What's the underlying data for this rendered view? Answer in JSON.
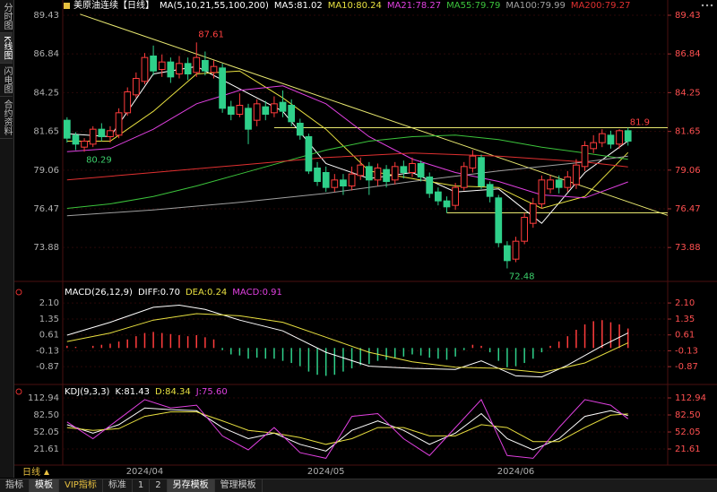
{
  "ui": {
    "sidebar": [
      "分时图",
      "K线图",
      "闪电图",
      "合约资料"
    ],
    "period": "日线",
    "toolbar": [
      "指标",
      "模板",
      "VIP指标",
      "标准",
      "1",
      "2",
      "另存模板",
      "管理模板"
    ]
  },
  "chart_data": [
    {
      "type": "candlestick",
      "title": "美原油连续【日线】",
      "indicator": "MA(5,10,21,55,100,200)",
      "categories": [
        null,
        null,
        null,
        null,
        null,
        null,
        null,
        null,
        null,
        "2024/04",
        null,
        null,
        null,
        null,
        null,
        null,
        null,
        null,
        null,
        null,
        null,
        null,
        null,
        null,
        null,
        null,
        null,
        null,
        null,
        null,
        "2024/05",
        null,
        null,
        null,
        null,
        null,
        null,
        null,
        null,
        null,
        null,
        null,
        null,
        null,
        null,
        null,
        null,
        null,
        null,
        null,
        null,
        null,
        "2024/06",
        null,
        null,
        null,
        null,
        null,
        null,
        null,
        null,
        null,
        null,
        null,
        null,
        null
      ],
      "open": [
        82.4,
        81.4,
        80.6,
        80.8,
        81.8,
        81.3,
        81.4,
        82.9,
        84.1,
        85.0,
        86.7,
        85.8,
        86.3,
        85.5,
        86.2,
        85.6,
        86.4,
        85.6,
        85.9,
        83.3,
        82.8,
        83.2,
        82.4,
        83.3,
        82.9,
        83.6,
        83.4,
        82.2,
        81.3,
        79.2,
        78.9,
        77.9,
        78.4,
        78.0,
        78.7,
        79.3,
        78.4,
        79.1,
        78.4,
        79.3,
        78.9,
        79.5,
        78.6,
        77.6,
        77.0,
        76.7,
        77.9,
        79.2,
        79.9,
        78.1,
        77.2,
        74.0,
        73.1,
        74.3,
        75.5,
        76.8,
        77.8,
        78.4,
        77.9,
        78.1,
        79.3,
        80.5,
        80.9,
        81.4,
        80.8,
        81.7
      ],
      "high": [
        82.6,
        81.6,
        81.2,
        82.0,
        82.2,
        82.0,
        83.2,
        84.6,
        85.6,
        86.9,
        87.4,
        86.8,
        86.6,
        86.7,
        86.6,
        87.61,
        87.0,
        86.4,
        86.2,
        83.7,
        84.2,
        83.5,
        83.8,
        83.7,
        84.0,
        84.4,
        83.8,
        82.5,
        81.5,
        79.6,
        79.3,
        78.8,
        78.8,
        79.3,
        79.9,
        79.6,
        79.5,
        79.4,
        79.6,
        79.7,
        79.9,
        79.7,
        78.9,
        77.9,
        77.3,
        78.2,
        79.6,
        80.4,
        80.1,
        78.3,
        77.4,
        74.3,
        74.6,
        76.2,
        77.2,
        78.7,
        78.7,
        78.7,
        79.0,
        79.8,
        81.0,
        81.4,
        81.8,
        81.7,
        81.8,
        81.9
      ],
      "low": [
        80.9,
        80.4,
        80.29,
        80.6,
        81.0,
        80.9,
        81.2,
        82.7,
        83.9,
        84.8,
        85.4,
        85.3,
        84.9,
        85.2,
        85.1,
        85.3,
        85.4,
        85.2,
        82.9,
        82.4,
        82.6,
        80.8,
        82.0,
        82.4,
        82.6,
        82.6,
        82.0,
        81.1,
        78.8,
        78.0,
        77.6,
        77.6,
        77.4,
        77.7,
        78.4,
        77.4,
        78.0,
        77.9,
        78.1,
        78.5,
        78.6,
        78.3,
        77.2,
        76.7,
        76.2,
        76.4,
        77.7,
        78.9,
        77.8,
        76.9,
        73.9,
        72.48,
        72.9,
        74.1,
        75.2,
        76.5,
        77.5,
        77.5,
        77.6,
        77.8,
        79.0,
        80.2,
        80.6,
        80.5,
        80.5,
        80.7
      ],
      "close": [
        81.2,
        80.8,
        81.0,
        81.8,
        81.3,
        81.7,
        82.9,
        84.3,
        85.2,
        86.6,
        85.7,
        86.3,
        85.3,
        86.2,
        85.5,
        86.6,
        85.7,
        86.0,
        83.2,
        82.8,
        83.4,
        81.8,
        83.5,
        82.8,
        83.5,
        83.0,
        82.3,
        81.4,
        79.0,
        78.3,
        77.9,
        78.4,
        78.0,
        78.8,
        79.4,
        78.4,
        79.2,
        78.3,
        79.3,
        78.9,
        79.5,
        78.6,
        77.5,
        77.0,
        76.6,
        77.9,
        79.3,
        80.0,
        78.0,
        77.3,
        74.2,
        73.0,
        74.3,
        75.9,
        76.8,
        78.4,
        78.4,
        77.9,
        78.6,
        79.4,
        80.7,
        80.9,
        81.5,
        80.8,
        81.7,
        81.0
      ],
      "up_color": "#ff3c3c",
      "down_color": "#2fd08a",
      "xlim": [
        -0.5,
        69.6
      ],
      "ylim": [
        71.85,
        89.97
      ],
      "yticks": [
        89.43,
        86.84,
        84.25,
        81.65,
        79.06,
        76.47,
        73.88
      ],
      "series": [
        {
          "name": "MA5:81.02",
          "color": "#ffffff",
          "x": [
            0,
            5,
            10,
            15,
            20,
            25,
            30,
            35,
            40,
            45,
            50,
            55,
            60,
            65
          ],
          "values": [
            81.5,
            81.3,
            85.5,
            86.0,
            84.5,
            83.0,
            79.5,
            78.5,
            78.9,
            77.6,
            77.8,
            75.5,
            78.9,
            81.02
          ]
        },
        {
          "name": "MA10:80.24",
          "color": "#e8e040",
          "x": [
            0,
            5,
            10,
            15,
            20,
            25,
            30,
            35,
            40,
            45,
            50,
            55,
            60,
            65
          ],
          "values": [
            81.0,
            81.0,
            83.0,
            85.5,
            85.7,
            83.9,
            81.8,
            79.0,
            78.5,
            78.0,
            77.9,
            76.5,
            77.3,
            80.24
          ]
        },
        {
          "name": "MA21:78.27",
          "color": "#e040e0",
          "x": [
            0,
            5,
            10,
            15,
            20,
            25,
            30,
            35,
            40,
            45,
            50,
            55,
            60,
            65
          ],
          "values": [
            80.3,
            80.5,
            81.8,
            83.5,
            84.4,
            84.7,
            83.5,
            81.3,
            79.8,
            78.9,
            78.3,
            77.4,
            77.2,
            78.27
          ]
        },
        {
          "name": "MA55:79.79",
          "color": "#3cc43c",
          "x": [
            0,
            5,
            10,
            15,
            20,
            25,
            30,
            35,
            40,
            45,
            50,
            55,
            60,
            65
          ],
          "values": [
            76.5,
            76.8,
            77.3,
            78.0,
            78.8,
            79.6,
            80.4,
            81.0,
            81.3,
            81.4,
            81.1,
            80.6,
            80.2,
            79.79
          ]
        },
        {
          "name": "MA100:79.99",
          "color": "#a0a0a0",
          "x": [
            0,
            10,
            20,
            30,
            40,
            50,
            60,
            65
          ],
          "values": [
            76.0,
            76.4,
            76.9,
            77.5,
            78.3,
            79.0,
            79.6,
            79.99
          ]
        },
        {
          "name": "MA200:79.27",
          "color": "#e03030",
          "x": [
            0,
            10,
            20,
            30,
            40,
            50,
            60,
            65
          ],
          "values": [
            78.4,
            78.9,
            79.4,
            79.9,
            80.2,
            80.0,
            79.6,
            79.27
          ]
        }
      ],
      "trendlines": [
        {
          "color": "#e8e870",
          "x": [
            1.5,
            69.6
          ],
          "values": [
            89.5,
            76.03
          ]
        },
        {
          "color": "#e8e870",
          "x": [
            24,
            69.6
          ],
          "values": [
            81.9,
            81.9
          ]
        },
        {
          "color": "#e8e870",
          "x": [
            44,
            69.6
          ],
          "values": [
            76.2,
            76.2
          ]
        }
      ]
    },
    {
      "type": "macd",
      "title": "MACD(26,12,9)",
      "xlim": [
        -0.5,
        69.6
      ],
      "ylim": [
        -1.66,
        2.94
      ],
      "yticks": [
        {
          "value": 2.1,
          "label": "2.10"
        },
        1.35,
        0.61,
        -0.13,
        -0.87
      ],
      "series": [
        {
          "name": "DIFF:0.70",
          "color": "#ffffff",
          "x": [
            0,
            5,
            10,
            13,
            16,
            20,
            25,
            30,
            35,
            40,
            45,
            48,
            52,
            55,
            58,
            62,
            65
          ],
          "values": [
            0.6,
            1.2,
            1.9,
            2.0,
            1.8,
            1.3,
            0.8,
            -0.2,
            -0.85,
            -0.95,
            -1.0,
            -0.6,
            -1.3,
            -1.35,
            -0.8,
            0.1,
            0.7
          ]
        },
        {
          "name": "DEA:0.24",
          "color": "#e8e040",
          "x": [
            0,
            5,
            10,
            15,
            20,
            25,
            30,
            35,
            40,
            45,
            50,
            55,
            60,
            65
          ],
          "values": [
            0.3,
            0.7,
            1.3,
            1.6,
            1.5,
            1.2,
            0.5,
            -0.2,
            -0.65,
            -0.9,
            -0.95,
            -1.15,
            -0.7,
            0.24
          ]
        }
      ],
      "histogram": {
        "name": "MACD:0.91",
        "color": "#e040e0",
        "up_color": "#ff3c3c",
        "down_color": "#2fd08a",
        "values": [
          0.1,
          0.05,
          0,
          0.1,
          0.15,
          0.2,
          0.3,
          0.4,
          0.55,
          0.7,
          0.75,
          0.7,
          0.65,
          0.6,
          0.55,
          0.6,
          0.5,
          0.4,
          -0.1,
          -0.3,
          -0.35,
          -0.5,
          -0.45,
          -0.5,
          -0.5,
          -0.6,
          -0.7,
          -0.85,
          -1.1,
          -1.25,
          -1.3,
          -1.25,
          -1.1,
          -0.95,
          -0.8,
          -0.75,
          -0.6,
          -0.55,
          -0.45,
          -0.4,
          -0.3,
          -0.35,
          -0.45,
          -0.5,
          -0.55,
          -0.4,
          -0.1,
          0.15,
          0.1,
          -0.2,
          -0.6,
          -0.9,
          -0.85,
          -0.7,
          -0.5,
          -0.2,
          0.1,
          0.3,
          0.55,
          0.85,
          1.1,
          1.25,
          1.3,
          1.2,
          1.1,
          0.91
        ]
      }
    },
    {
      "type": "line",
      "title": "KDJ(9,3,3)",
      "xlim": [
        -0.5,
        69.6
      ],
      "ylim": [
        -5.6,
        135.4
      ],
      "yticks": [
        112.94,
        {
          "value": 82.5,
          "label": "82.50"
        },
        52.05,
        21.61
      ],
      "series": [
        {
          "name": "K:81.43",
          "color": "#ffffff",
          "x": [
            0,
            3,
            6,
            9,
            12,
            15,
            18,
            21,
            24,
            27,
            30,
            33,
            36,
            39,
            42,
            45,
            48,
            51,
            54,
            57,
            60,
            63,
            65
          ],
          "values": [
            65,
            50,
            65,
            95,
            92,
            90,
            60,
            40,
            50,
            30,
            18,
            55,
            72,
            55,
            30,
            50,
            85,
            40,
            20,
            40,
            80,
            90,
            81.43
          ]
        },
        {
          "name": "D:84.34",
          "color": "#e8e040",
          "x": [
            0,
            3,
            6,
            9,
            12,
            15,
            18,
            21,
            24,
            27,
            30,
            33,
            36,
            39,
            42,
            45,
            48,
            51,
            54,
            57,
            60,
            63,
            65
          ],
          "values": [
            60,
            55,
            58,
            80,
            88,
            88,
            72,
            55,
            50,
            42,
            30,
            40,
            60,
            60,
            45,
            45,
            65,
            60,
            35,
            35,
            60,
            82,
            84.34
          ]
        },
        {
          "name": "J:75.60",
          "color": "#e040e0",
          "x": [
            0,
            3,
            6,
            9,
            12,
            15,
            18,
            21,
            24,
            27,
            30,
            33,
            36,
            39,
            42,
            45,
            48,
            51,
            54,
            57,
            60,
            63,
            65
          ],
          "values": [
            70,
            40,
            75,
            110,
            95,
            100,
            45,
            20,
            60,
            15,
            5,
            80,
            85,
            40,
            10,
            60,
            110,
            10,
            5,
            60,
            110,
            100,
            75.6
          ]
        }
      ]
    }
  ]
}
